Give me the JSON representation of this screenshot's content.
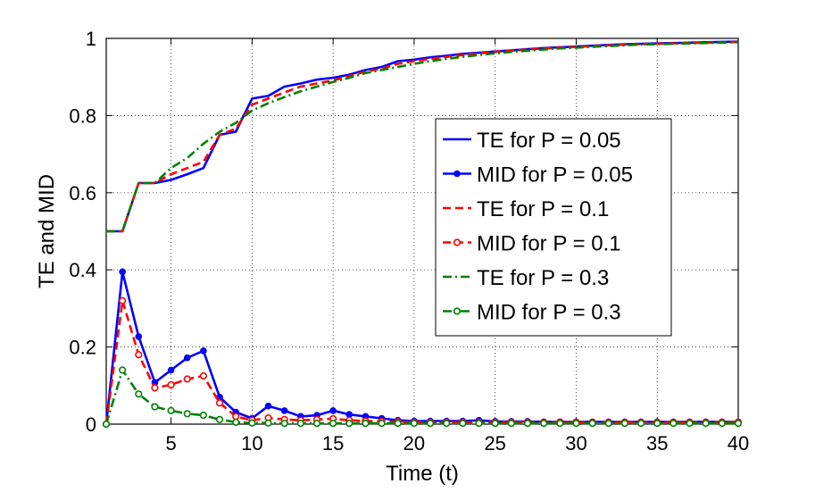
{
  "chart_data": {
    "type": "line",
    "title": "",
    "xlabel": "Time (t)",
    "ylabel": "TE and MID",
    "xlim": [
      1,
      40
    ],
    "ylim": [
      0,
      1
    ],
    "xticks": [
      5,
      10,
      15,
      20,
      25,
      30,
      35,
      40
    ],
    "yticks": [
      0,
      0.2,
      0.4,
      0.6,
      0.8,
      1
    ],
    "ytick_labels": [
      "0",
      "0.2",
      "0.4",
      "0.6",
      "0.8",
      "1"
    ],
    "grid": true,
    "legend_position": "right-center",
    "x": [
      1,
      2,
      3,
      4,
      5,
      6,
      7,
      8,
      9,
      10,
      11,
      12,
      13,
      14,
      15,
      16,
      17,
      18,
      19,
      20,
      21,
      22,
      23,
      24,
      25,
      26,
      27,
      28,
      29,
      30,
      31,
      32,
      33,
      34,
      35,
      36,
      37,
      38,
      39,
      40
    ],
    "series": [
      {
        "name": "TE for P = 0.05",
        "color": "#0000ff",
        "style": "solid",
        "marker": "none",
        "values": [
          0.5,
          0.5,
          0.625,
          0.625,
          0.633,
          0.648,
          0.664,
          0.75,
          0.758,
          0.844,
          0.851,
          0.875,
          0.883,
          0.893,
          0.898,
          0.906,
          0.918,
          0.926,
          0.941,
          0.945,
          0.951,
          0.955,
          0.96,
          0.963,
          0.966,
          0.969,
          0.972,
          0.975,
          0.977,
          0.979,
          0.981,
          0.983,
          0.985,
          0.986,
          0.987,
          0.988,
          0.989,
          0.99,
          0.991,
          0.992
        ]
      },
      {
        "name": "MID for P = 0.05",
        "color": "#0000ff",
        "style": "solid",
        "marker": "dot",
        "values": [
          0,
          0.395,
          0.227,
          0.108,
          0.14,
          0.172,
          0.19,
          0.07,
          0.031,
          0.015,
          0.047,
          0.035,
          0.02,
          0.023,
          0.035,
          0.025,
          0.02,
          0.015,
          0.01,
          0.008,
          0.008,
          0.008,
          0.008,
          0.01,
          0.007,
          0.007,
          0.007,
          0.006,
          0.006,
          0.006,
          0.006,
          0.006,
          0.006,
          0.006,
          0.006,
          0.006,
          0.006,
          0.006,
          0.006,
          0.006
        ]
      },
      {
        "name": "TE for P = 0.1",
        "color": "#ff0000",
        "style": "dashed",
        "marker": "none",
        "values": [
          0.5,
          0.5,
          0.625,
          0.625,
          0.648,
          0.664,
          0.68,
          0.75,
          0.766,
          0.828,
          0.844,
          0.86,
          0.875,
          0.883,
          0.891,
          0.902,
          0.914,
          0.922,
          0.934,
          0.941,
          0.947,
          0.952,
          0.957,
          0.961,
          0.965,
          0.968,
          0.971,
          0.974,
          0.976,
          0.978,
          0.98,
          0.982,
          0.984,
          0.985,
          0.986,
          0.987,
          0.988,
          0.989,
          0.99,
          0.991
        ]
      },
      {
        "name": "MID for P = 0.1",
        "color": "#ff0000",
        "style": "dashed",
        "marker": "circle",
        "values": [
          0,
          0.32,
          0.18,
          0.094,
          0.102,
          0.117,
          0.125,
          0.055,
          0.02,
          0.01,
          0.016,
          0.012,
          0.01,
          0.012,
          0.014,
          0.01,
          0.008,
          0.007,
          0.006,
          0.005,
          0.005,
          0.005,
          0.005,
          0.005,
          0.005,
          0.005,
          0.005,
          0.005,
          0.005,
          0.005,
          0.005,
          0.005,
          0.005,
          0.005,
          0.005,
          0.005,
          0.005,
          0.005,
          0.005,
          0.005
        ]
      },
      {
        "name": "TE for P = 0.3",
        "color": "#008000",
        "style": "dashdot",
        "marker": "none",
        "values": [
          0.5,
          0.5,
          0.625,
          0.625,
          0.664,
          0.69,
          0.727,
          0.758,
          0.781,
          0.813,
          0.832,
          0.848,
          0.863,
          0.875,
          0.887,
          0.898,
          0.91,
          0.918,
          0.926,
          0.934,
          0.941,
          0.947,
          0.952,
          0.957,
          0.961,
          0.965,
          0.968,
          0.971,
          0.974,
          0.976,
          0.978,
          0.98,
          0.982,
          0.984,
          0.985,
          0.986,
          0.987,
          0.988,
          0.989,
          0.99
        ]
      },
      {
        "name": "MID for P = 0.3",
        "color": "#008000",
        "style": "dashdot",
        "marker": "circle",
        "values": [
          0,
          0.14,
          0.078,
          0.045,
          0.035,
          0.027,
          0.023,
          0.012,
          0.005,
          0.003,
          0.003,
          0.002,
          0.002,
          0.002,
          0.002,
          0.002,
          0.002,
          0.002,
          0.002,
          0.002,
          0.002,
          0.002,
          0.002,
          0.002,
          0.002,
          0.002,
          0.002,
          0.002,
          0.002,
          0.002,
          0.002,
          0.002,
          0.002,
          0.002,
          0.002,
          0.002,
          0.002,
          0.002,
          0.002,
          0.002
        ]
      }
    ]
  }
}
